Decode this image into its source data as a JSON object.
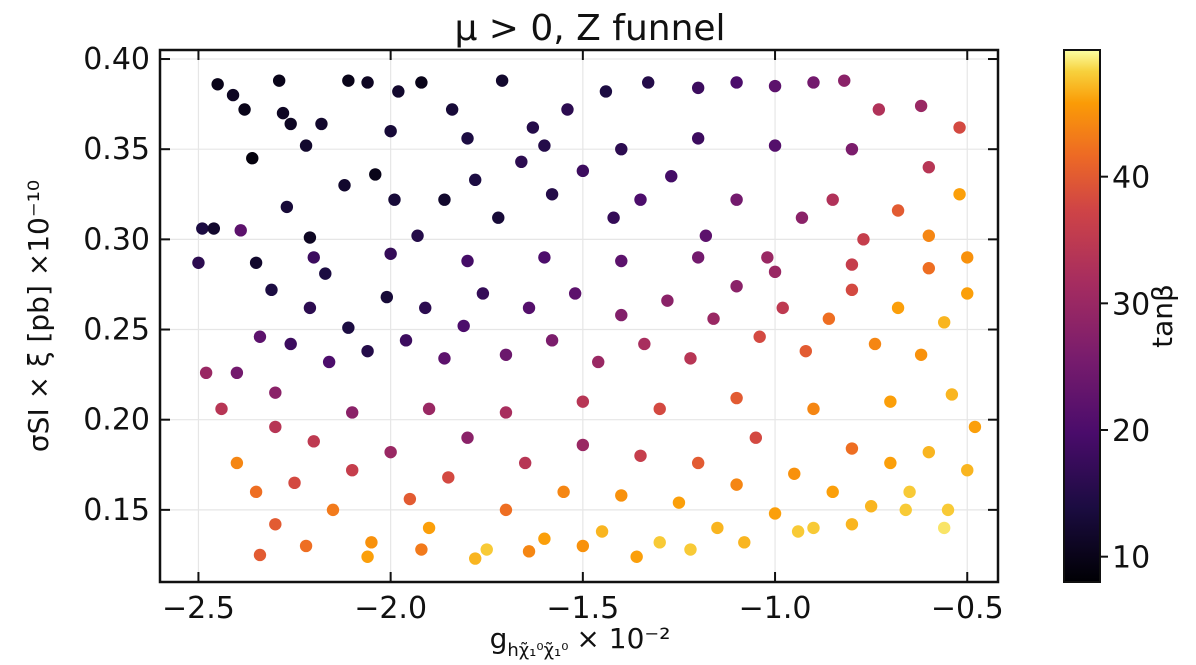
{
  "chart_data": {
    "type": "scatter",
    "title": "μ > 0, Z funnel",
    "xlabel": "g",
    "xlabel_subscript": "hχ̃₁⁰χ̃₁⁰",
    "xlabel_suffix": "× 10⁻²",
    "ylabel": "σSI × ξ [pb] ×10⁻¹⁰",
    "xlim": [
      -2.6,
      -0.42
    ],
    "ylim": [
      0.11,
      0.405
    ],
    "xticks": [
      -2.5,
      -2.0,
      -1.5,
      -1.0,
      -0.5
    ],
    "xtick_labels": [
      "−2.5",
      "−2.0",
      "−1.5",
      "−1.0",
      "−0.5"
    ],
    "yticks": [
      0.15,
      0.2,
      0.25,
      0.3,
      0.35,
      0.4
    ],
    "ytick_labels": [
      "0.15",
      "0.20",
      "0.25",
      "0.30",
      "0.35",
      "0.40"
    ],
    "grid": true,
    "colorbar": {
      "label": "tanβ",
      "range": [
        8,
        50
      ],
      "ticks": [
        10,
        20,
        30,
        40
      ],
      "tick_labels": [
        "10",
        "20",
        "30",
        "40"
      ],
      "colormap": "inferno"
    },
    "points_description_note": "",
    "points": [
      [
        -2.45,
        0.386,
        10
      ],
      [
        -2.41,
        0.38,
        11
      ],
      [
        -2.36,
        0.345,
        9
      ],
      [
        -2.38,
        0.372,
        10
      ],
      [
        -2.29,
        0.388,
        10
      ],
      [
        -2.26,
        0.364,
        11
      ],
      [
        -2.22,
        0.352,
        12
      ],
      [
        -2.11,
        0.388,
        10
      ],
      [
        -2.06,
        0.387,
        11
      ],
      [
        -1.98,
        0.382,
        12
      ],
      [
        -1.92,
        0.387,
        10
      ],
      [
        -1.84,
        0.372,
        13
      ],
      [
        -1.71,
        0.388,
        12
      ],
      [
        -1.63,
        0.362,
        15
      ],
      [
        -1.54,
        0.372,
        16
      ],
      [
        -1.44,
        0.382,
        14
      ],
      [
        -1.33,
        0.387,
        15
      ],
      [
        -1.2,
        0.384,
        18
      ],
      [
        -1.1,
        0.387,
        20
      ],
      [
        -1.0,
        0.385,
        22
      ],
      [
        -0.9,
        0.387,
        25
      ],
      [
        -0.82,
        0.388,
        28
      ],
      [
        -0.73,
        0.372,
        33
      ],
      [
        -0.62,
        0.374,
        30
      ],
      [
        -0.52,
        0.362,
        38
      ],
      [
        -2.49,
        0.306,
        14
      ],
      [
        -2.46,
        0.306,
        12
      ],
      [
        -2.5,
        0.287,
        16
      ],
      [
        -2.39,
        0.305,
        22
      ],
      [
        -2.35,
        0.287,
        12
      ],
      [
        -2.31,
        0.272,
        14
      ],
      [
        -2.27,
        0.318,
        13
      ],
      [
        -2.21,
        0.301,
        11
      ],
      [
        -2.17,
        0.281,
        14
      ],
      [
        -2.12,
        0.33,
        12
      ],
      [
        -2.04,
        0.336,
        10
      ],
      [
        -1.99,
        0.322,
        13
      ],
      [
        -1.93,
        0.302,
        15
      ],
      [
        -1.86,
        0.322,
        12
      ],
      [
        -1.78,
        0.333,
        14
      ],
      [
        -1.72,
        0.312,
        13
      ],
      [
        -1.66,
        0.343,
        16
      ],
      [
        -1.58,
        0.325,
        15
      ],
      [
        -1.5,
        0.338,
        18
      ],
      [
        -1.42,
        0.312,
        17
      ],
      [
        -1.35,
        0.322,
        20
      ],
      [
        -1.27,
        0.335,
        19
      ],
      [
        -1.18,
        0.302,
        22
      ],
      [
        -1.1,
        0.322,
        25
      ],
      [
        -1.02,
        0.29,
        30
      ],
      [
        -0.93,
        0.312,
        28
      ],
      [
        -0.85,
        0.322,
        33
      ],
      [
        -0.77,
        0.3,
        36
      ],
      [
        -0.68,
        0.316,
        40
      ],
      [
        -0.6,
        0.302,
        44
      ],
      [
        -0.52,
        0.325,
        46
      ],
      [
        -2.48,
        0.226,
        30
      ],
      [
        -2.44,
        0.206,
        34
      ],
      [
        -2.4,
        0.226,
        25
      ],
      [
        -2.34,
        0.246,
        22
      ],
      [
        -2.3,
        0.215,
        28
      ],
      [
        -2.26,
        0.242,
        18
      ],
      [
        -2.21,
        0.262,
        16
      ],
      [
        -2.16,
        0.232,
        20
      ],
      [
        -2.11,
        0.251,
        14
      ],
      [
        -2.06,
        0.238,
        15
      ],
      [
        -2.01,
        0.268,
        13
      ],
      [
        -1.96,
        0.244,
        18
      ],
      [
        -1.91,
        0.262,
        16
      ],
      [
        -1.86,
        0.234,
        22
      ],
      [
        -1.81,
        0.252,
        20
      ],
      [
        -1.76,
        0.27,
        17
      ],
      [
        -1.7,
        0.236,
        24
      ],
      [
        -1.64,
        0.262,
        21
      ],
      [
        -1.58,
        0.244,
        26
      ],
      [
        -1.52,
        0.27,
        22
      ],
      [
        -1.46,
        0.232,
        30
      ],
      [
        -1.4,
        0.258,
        27
      ],
      [
        -1.34,
        0.242,
        32
      ],
      [
        -1.28,
        0.266,
        28
      ],
      [
        -1.22,
        0.234,
        34
      ],
      [
        -1.16,
        0.256,
        30
      ],
      [
        -1.1,
        0.274,
        28
      ],
      [
        -1.04,
        0.246,
        38
      ],
      [
        -0.98,
        0.262,
        35
      ],
      [
        -0.92,
        0.238,
        40
      ],
      [
        -0.86,
        0.256,
        42
      ],
      [
        -0.8,
        0.272,
        38
      ],
      [
        -0.74,
        0.242,
        44
      ],
      [
        -0.68,
        0.262,
        46
      ],
      [
        -0.62,
        0.236,
        45
      ],
      [
        -0.56,
        0.254,
        47
      ],
      [
        -0.5,
        0.27,
        46
      ],
      [
        -2.4,
        0.176,
        44
      ],
      [
        -2.35,
        0.16,
        42
      ],
      [
        -2.3,
        0.142,
        40
      ],
      [
        -2.25,
        0.165,
        38
      ],
      [
        -2.2,
        0.188,
        35
      ],
      [
        -2.15,
        0.15,
        43
      ],
      [
        -2.1,
        0.172,
        36
      ],
      [
        -2.05,
        0.132,
        45
      ],
      [
        -2.0,
        0.182,
        30
      ],
      [
        -1.95,
        0.156,
        40
      ],
      [
        -1.9,
        0.14,
        46
      ],
      [
        -1.85,
        0.168,
        38
      ],
      [
        -1.8,
        0.19,
        28
      ],
      [
        -1.75,
        0.128,
        48
      ],
      [
        -1.7,
        0.15,
        42
      ],
      [
        -1.65,
        0.176,
        34
      ],
      [
        -1.6,
        0.134,
        46
      ],
      [
        -1.55,
        0.16,
        44
      ],
      [
        -1.5,
        0.186,
        30
      ],
      [
        -1.45,
        0.138,
        47
      ],
      [
        -1.4,
        0.158,
        45
      ],
      [
        -1.35,
        0.18,
        36
      ],
      [
        -1.3,
        0.132,
        48
      ],
      [
        -1.25,
        0.154,
        46
      ],
      [
        -1.2,
        0.176,
        40
      ],
      [
        -1.15,
        0.14,
        47
      ],
      [
        -1.1,
        0.164,
        44
      ],
      [
        -1.05,
        0.19,
        38
      ],
      [
        -1.0,
        0.148,
        46
      ],
      [
        -0.95,
        0.17,
        45
      ],
      [
        -0.9,
        0.14,
        48
      ],
      [
        -0.85,
        0.16,
        46
      ],
      [
        -0.8,
        0.184,
        42
      ],
      [
        -0.75,
        0.152,
        47
      ],
      [
        -0.7,
        0.176,
        46
      ],
      [
        -0.65,
        0.16,
        48
      ],
      [
        -0.6,
        0.182,
        47
      ],
      [
        -0.55,
        0.15,
        48
      ],
      [
        -0.5,
        0.172,
        47
      ],
      [
        -0.48,
        0.196,
        46
      ],
      [
        -2.34,
        0.125,
        40
      ],
      [
        -2.22,
        0.13,
        42
      ],
      [
        -2.06,
        0.124,
        46
      ],
      [
        -1.92,
        0.128,
        43
      ],
      [
        -1.78,
        0.123,
        47
      ],
      [
        -1.64,
        0.127,
        44
      ],
      [
        -1.5,
        0.13,
        45
      ],
      [
        -1.36,
        0.124,
        46
      ],
      [
        -1.22,
        0.128,
        48
      ],
      [
        -1.08,
        0.132,
        47
      ],
      [
        -0.94,
        0.138,
        48
      ],
      [
        -0.8,
        0.142,
        47
      ],
      [
        -0.66,
        0.15,
        48
      ],
      [
        -0.56,
        0.14,
        49
      ],
      [
        -2.28,
        0.37,
        11
      ],
      [
        -2.18,
        0.364,
        12
      ],
      [
        -2.0,
        0.36,
        13
      ],
      [
        -1.8,
        0.356,
        14
      ],
      [
        -1.6,
        0.352,
        15
      ],
      [
        -1.4,
        0.35,
        16
      ],
      [
        -1.2,
        0.356,
        18
      ],
      [
        -1.0,
        0.352,
        21
      ],
      [
        -0.8,
        0.35,
        26
      ],
      [
        -0.6,
        0.34,
        34
      ],
      [
        -2.2,
        0.29,
        18
      ],
      [
        -2.0,
        0.292,
        17
      ],
      [
        -1.8,
        0.288,
        19
      ],
      [
        -1.6,
        0.29,
        20
      ],
      [
        -1.4,
        0.288,
        22
      ],
      [
        -1.2,
        0.29,
        25
      ],
      [
        -1.0,
        0.282,
        30
      ],
      [
        -0.8,
        0.286,
        36
      ],
      [
        -0.6,
        0.284,
        42
      ],
      [
        -0.5,
        0.29,
        45
      ],
      [
        -2.3,
        0.196,
        34
      ],
      [
        -2.1,
        0.204,
        28
      ],
      [
        -1.9,
        0.206,
        30
      ],
      [
        -1.7,
        0.204,
        32
      ],
      [
        -1.5,
        0.21,
        34
      ],
      [
        -1.3,
        0.206,
        38
      ],
      [
        -1.1,
        0.212,
        40
      ],
      [
        -0.9,
        0.206,
        44
      ],
      [
        -0.7,
        0.21,
        46
      ],
      [
        -0.54,
        0.214,
        47
      ]
    ]
  }
}
